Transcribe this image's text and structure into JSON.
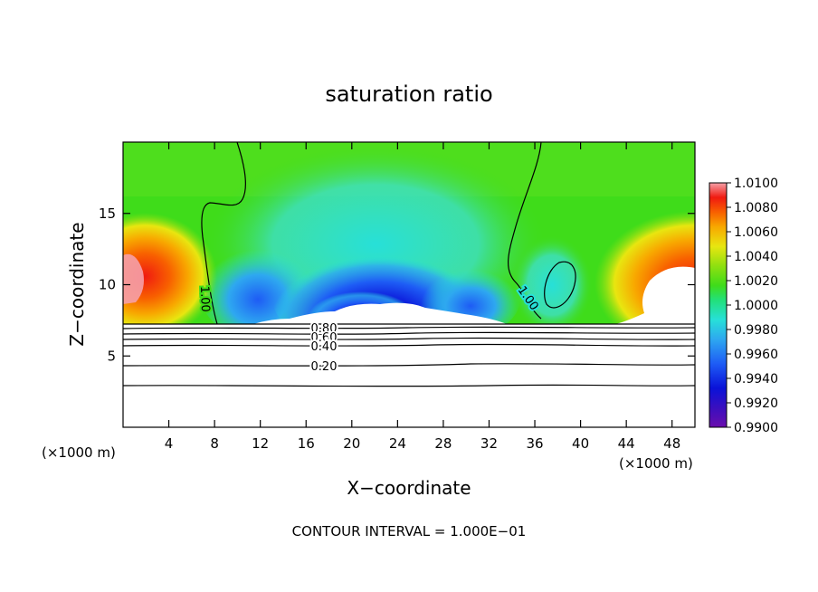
{
  "chart_data": {
    "type": "heatmap",
    "title": "saturation ratio",
    "xlabel": "X−coordinate",
    "ylabel": "Z−coordinate",
    "x_unit_left": "(×1000 m)",
    "x_unit_right": "(×1000 m)",
    "xlim": [
      0,
      50
    ],
    "ylim": [
      0,
      20
    ],
    "x_ticks": [
      4,
      8,
      12,
      16,
      20,
      24,
      28,
      32,
      36,
      40,
      44,
      48
    ],
    "y_ticks": [
      5,
      10,
      15
    ],
    "colorbar": {
      "range": [
        0.99,
        1.01
      ],
      "tick_values": [
        0.99,
        0.992,
        0.994,
        0.996,
        0.998,
        1.0,
        1.002,
        1.004,
        1.006,
        1.008,
        1.01
      ],
      "tick_labels": [
        "0.9900",
        "0.9920",
        "0.9940",
        "0.9960",
        "0.9980",
        "1.0000",
        "1.0020",
        "1.0040",
        "1.0060",
        "1.0080",
        "1.0100"
      ],
      "colors": [
        "#6a0dad",
        "#3a0fbf",
        "#0a12d8",
        "#1e5cf5",
        "#2ea8f0",
        "#27e0d8",
        "#22e07a",
        "#3fdc1a",
        "#8fe010",
        "#e8e610",
        "#f8a800",
        "#f86000",
        "#f01a10",
        "#f5a0a8"
      ]
    },
    "contour_levels": [
      {
        "value": 1.0,
        "label": "1.00"
      },
      {
        "value": 0.8,
        "label": "0.80"
      },
      {
        "value": 0.6,
        "label": "0.60"
      },
      {
        "value": 0.4,
        "label": "0.40"
      },
      {
        "value": 0.2,
        "label": "0.20"
      }
    ],
    "footer": "CONTOUR INTERVAL = 1.000E−01"
  }
}
